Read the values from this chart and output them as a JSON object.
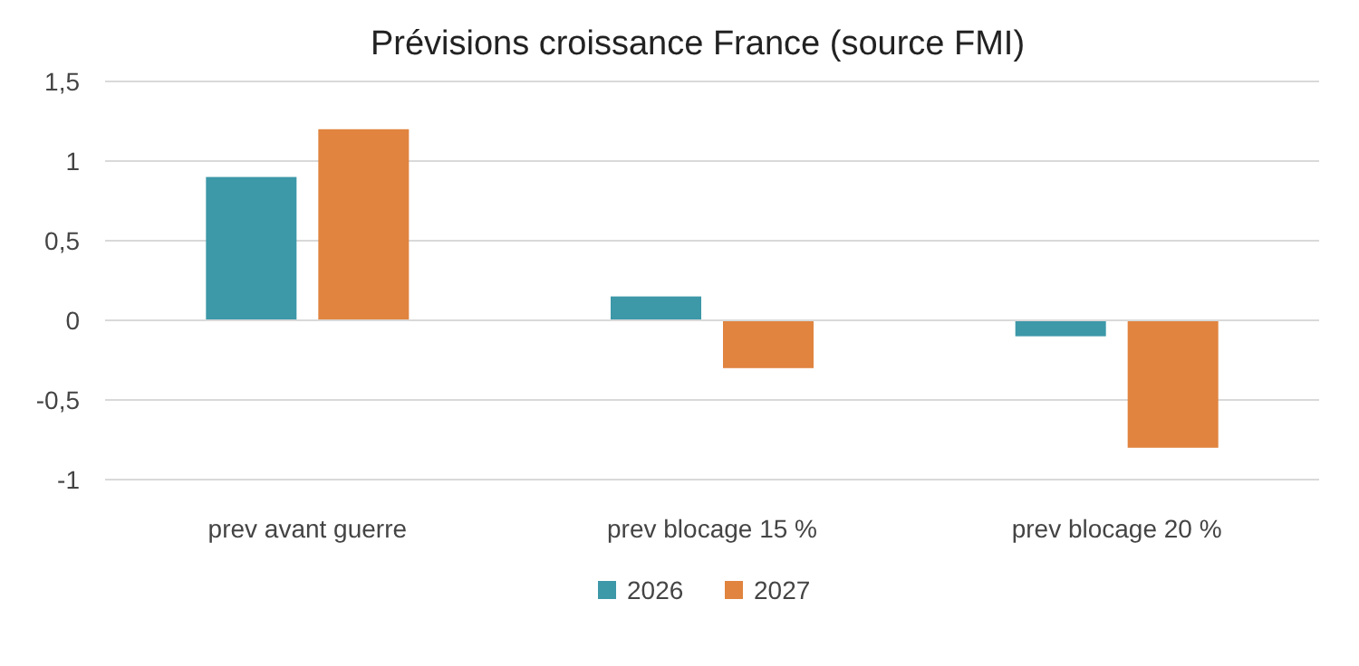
{
  "chart_data": {
    "type": "bar",
    "title": "Prévisions croissance France (source FMI)",
    "categories": [
      "prev avant guerre",
      "prev blocage 15 %",
      "prev blocage 20 %"
    ],
    "series": [
      {
        "name": "2026",
        "color": "#3d98a8",
        "values": [
          0.9,
          0.15,
          -0.1
        ]
      },
      {
        "name": "2027",
        "color": "#e0843f",
        "values": [
          1.2,
          -0.3,
          -0.8
        ]
      }
    ],
    "ylim": [
      -1,
      1.5
    ],
    "yticks": [
      {
        "value": -1,
        "label": "-1"
      },
      {
        "value": -0.5,
        "label": "-0,5"
      },
      {
        "value": 0,
        "label": "0"
      },
      {
        "value": 0.5,
        "label": "0,5"
      },
      {
        "value": 1,
        "label": "1"
      },
      {
        "value": 1.5,
        "label": "1,5"
      }
    ],
    "grid": "y",
    "legend": "bottom"
  }
}
